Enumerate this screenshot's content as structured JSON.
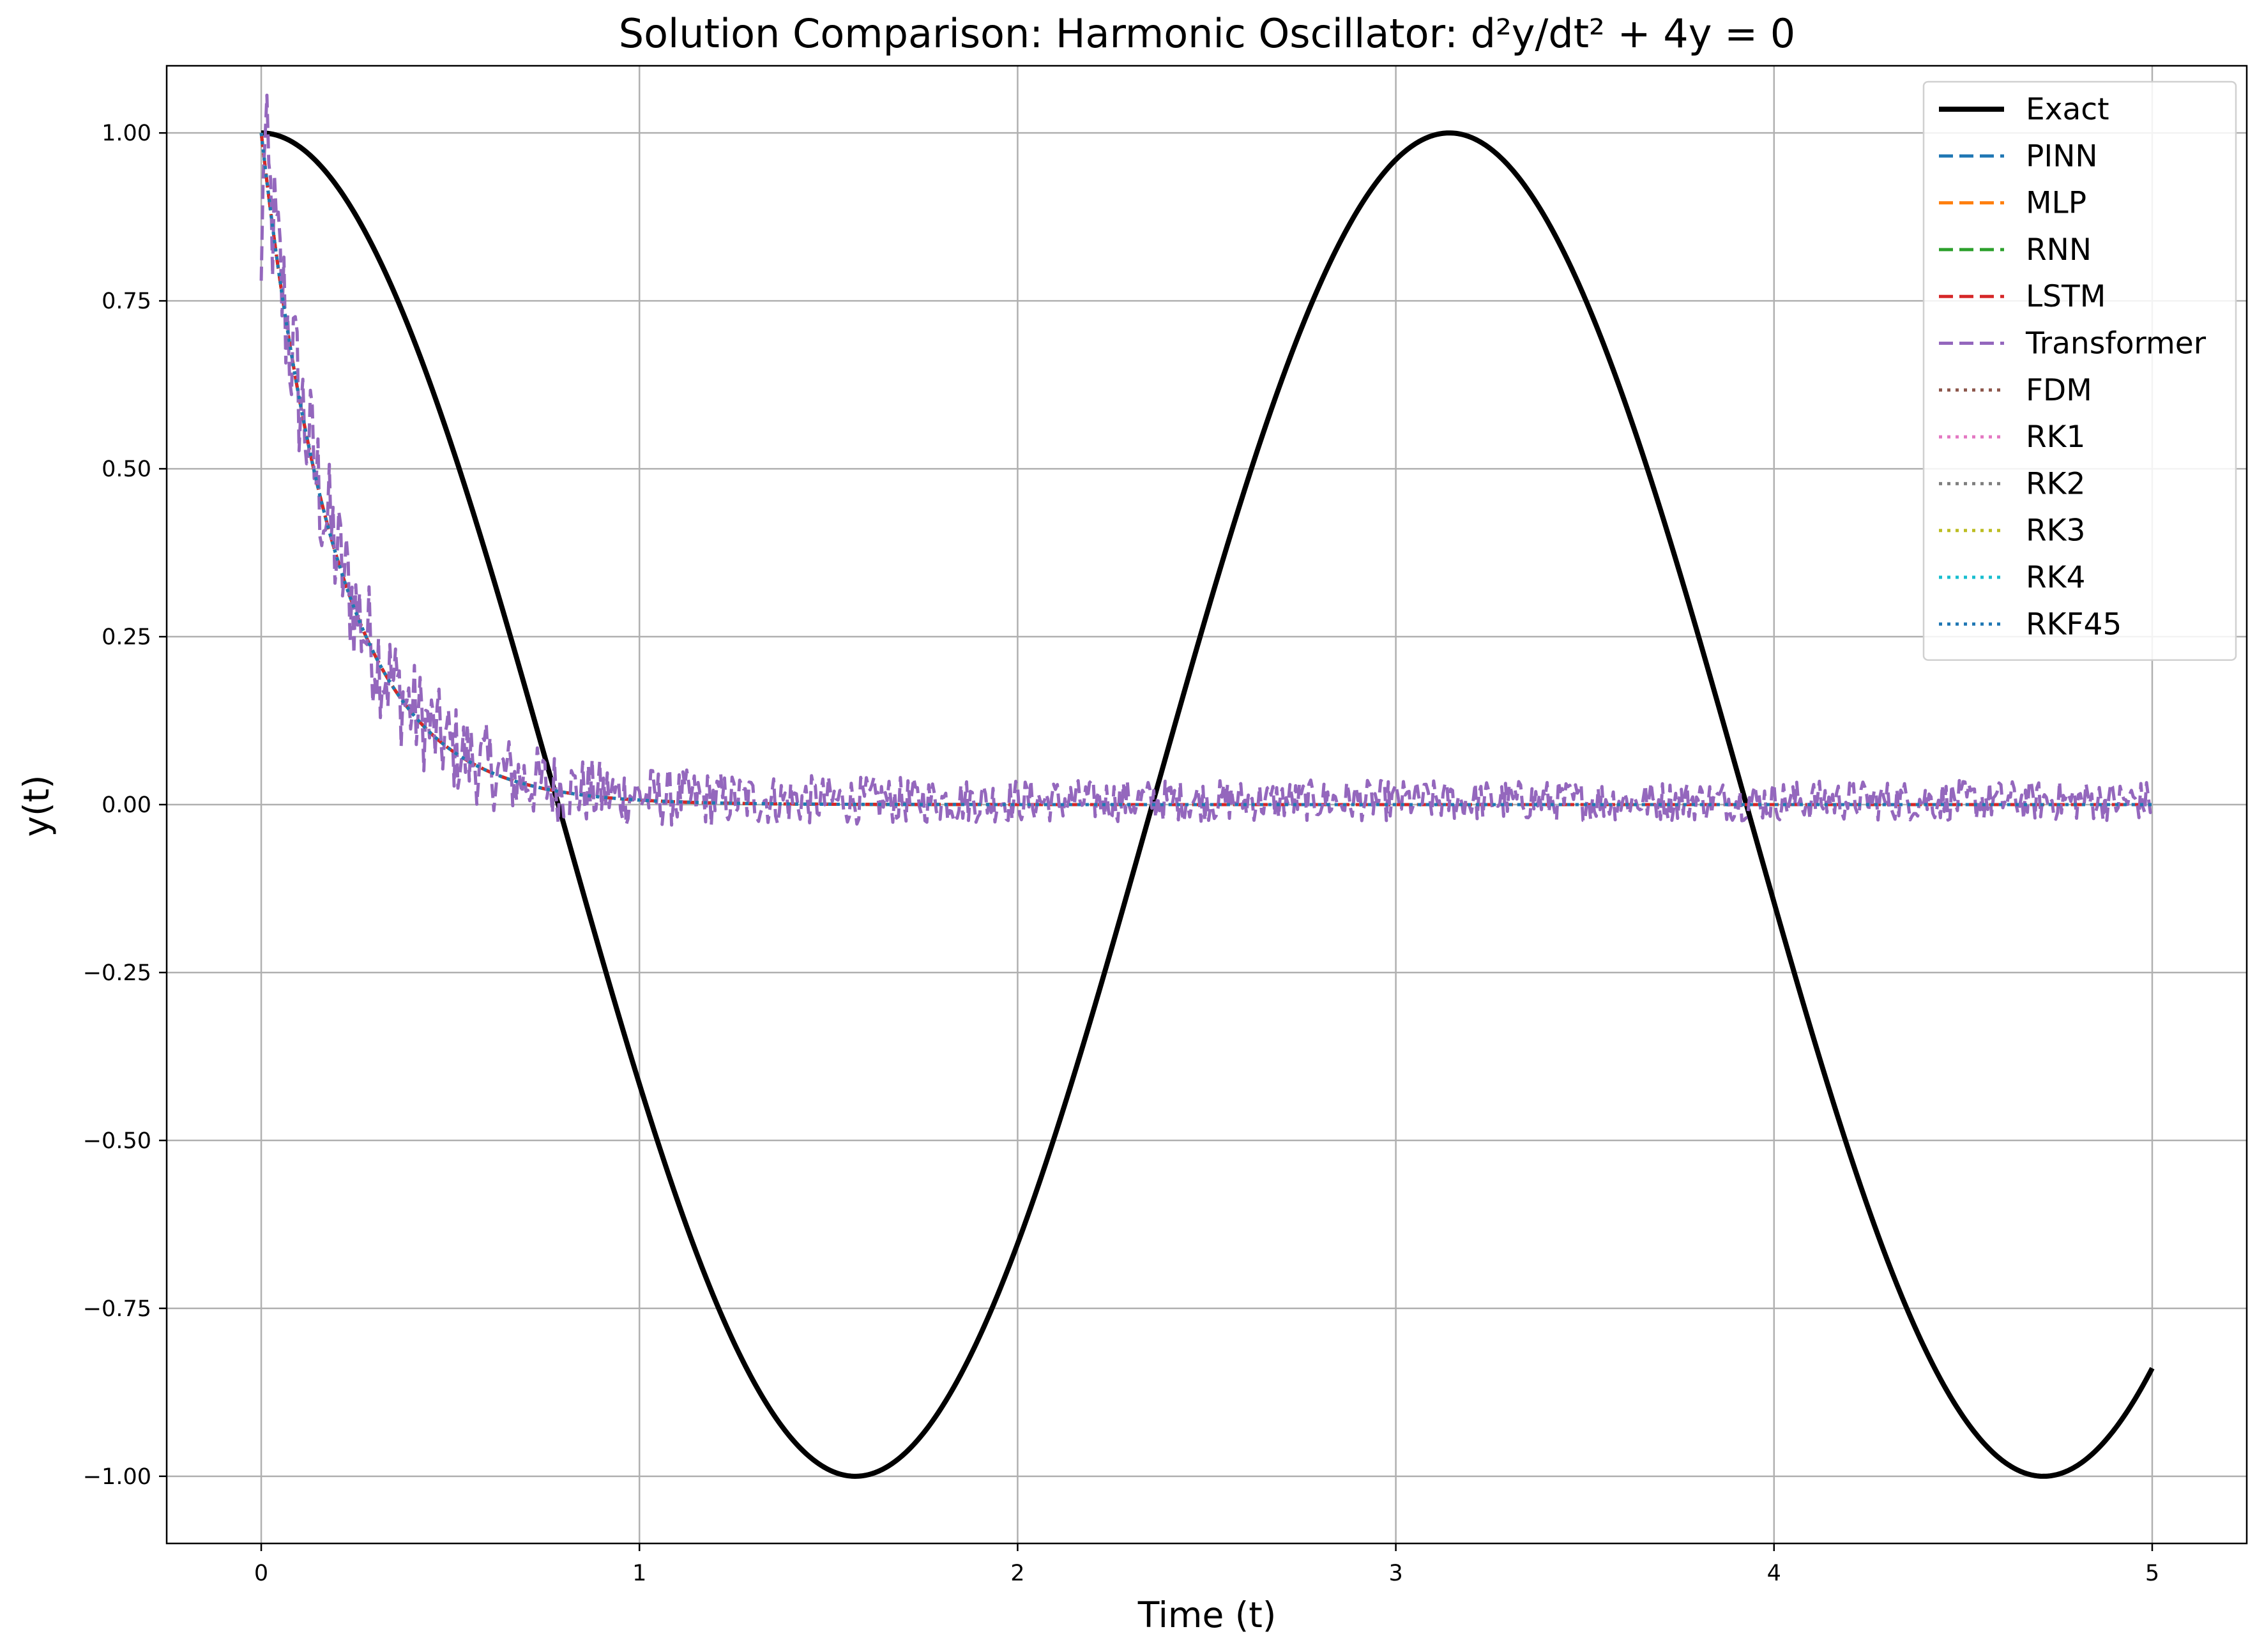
{
  "chart_data": {
    "type": "line",
    "title": "Solution Comparison: Harmonic Oscillator: d²y/dt² + 4y = 0",
    "xlabel": "Time (t)",
    "ylabel": "y(t)",
    "xlim": [
      -0.25,
      5.25
    ],
    "ylim": [
      -1.1,
      1.1
    ],
    "x_ticks": [
      0,
      1,
      2,
      3,
      4,
      5
    ],
    "x_tick_labels": [
      "0",
      "1",
      "2",
      "3",
      "4",
      "5"
    ],
    "y_ticks": [
      1.0,
      0.75,
      0.5,
      0.25,
      0.0,
      -0.25,
      -0.5,
      -0.75,
      -1.0
    ],
    "y_tick_labels": [
      "1.00",
      "0.75",
      "0.50",
      "0.25",
      "0.00",
      "−0.25",
      "−0.50",
      "−0.75",
      "−1.00"
    ],
    "grid": true,
    "legend_position": "top-right",
    "x_range": [
      0,
      5
    ],
    "series": [
      {
        "name": "Exact",
        "color": "#000000",
        "style": "solid",
        "width": "thick",
        "formula": "cos(2t)"
      },
      {
        "name": "PINN",
        "color": "#1f77b4",
        "style": "dashed",
        "formula": "exp(-5t)"
      },
      {
        "name": "MLP",
        "color": "#ff7f0e",
        "style": "dashed",
        "formula": "exp(-5t)"
      },
      {
        "name": "RNN",
        "color": "#2ca02c",
        "style": "dashed",
        "formula": "exp(-5t)"
      },
      {
        "name": "LSTM",
        "color": "#d62728",
        "style": "dashed",
        "formula": "exp(-5t)"
      },
      {
        "name": "Transformer",
        "color": "#9467bd",
        "style": "dashed",
        "formula": "exp(-5t) + noise",
        "noise_amplitude": 0.03
      },
      {
        "name": "FDM",
        "color": "#8c564b",
        "style": "dotted",
        "formula": "exp(-5t)"
      },
      {
        "name": "RK1",
        "color": "#e377c2",
        "style": "dotted",
        "formula": "exp(-5t)"
      },
      {
        "name": "RK2",
        "color": "#7f7f7f",
        "style": "dotted",
        "formula": "exp(-5t)"
      },
      {
        "name": "RK3",
        "color": "#bcbd22",
        "style": "dotted",
        "formula": "exp(-5t)"
      },
      {
        "name": "RK4",
        "color": "#17becf",
        "style": "dotted",
        "formula": "exp(-5t)"
      },
      {
        "name": "RKF45",
        "color": "#1f77b4",
        "style": "dotted",
        "formula": "exp(-5t)"
      }
    ]
  }
}
